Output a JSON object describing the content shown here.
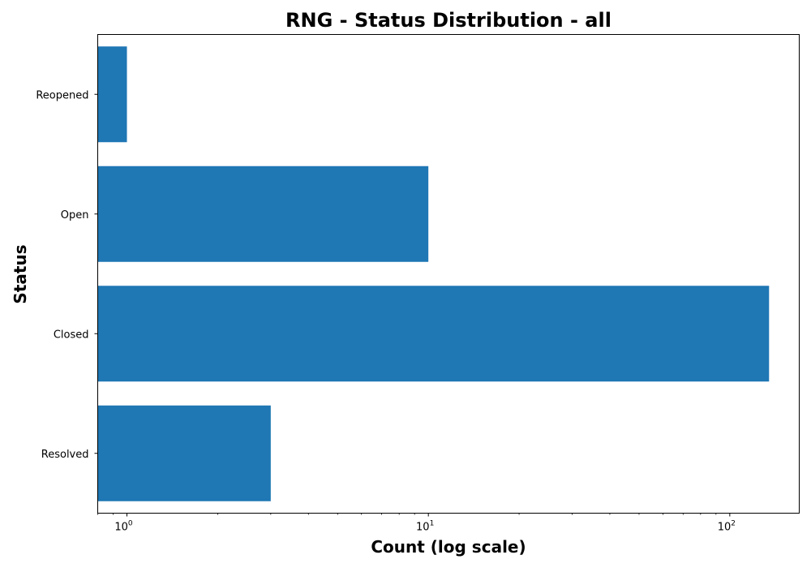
{
  "chart_data": {
    "type": "bar",
    "orientation": "horizontal",
    "title": "RNG - Status Distribution - all",
    "xlabel": "Count (log scale)",
    "ylabel": "Status",
    "x_scale": "log",
    "xlim": [
      0.8,
      170
    ],
    "categories": [
      "Resolved",
      "Closed",
      "Open",
      "Reopened"
    ],
    "values": [
      3,
      135,
      10,
      1
    ],
    "x_ticks": [
      {
        "value": 1,
        "base": "10",
        "exp": "0"
      },
      {
        "value": 10,
        "base": "10",
        "exp": "1"
      },
      {
        "value": 100,
        "base": "10",
        "exp": "2"
      }
    ],
    "bar_color": "#1f77b4",
    "grid": false,
    "legend": "none"
  }
}
